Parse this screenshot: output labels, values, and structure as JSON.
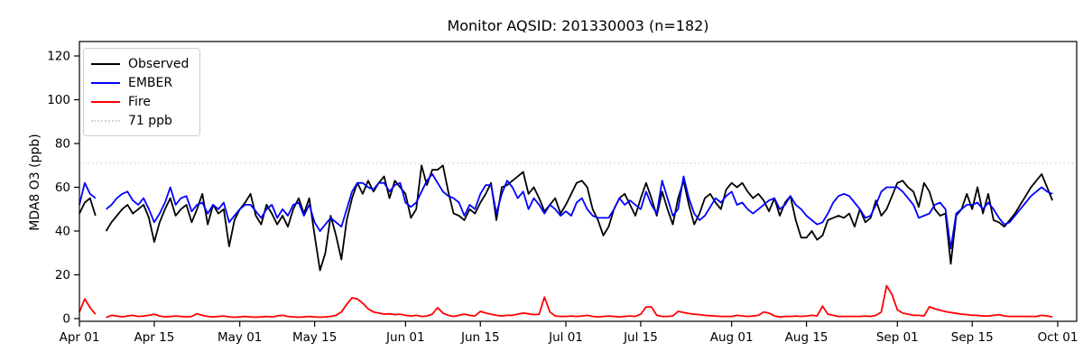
{
  "chart_data": {
    "type": "line",
    "title": "Monitor AQSID: 201330003 (n=182)",
    "ylabel": "MDA8 O3 (ppb)",
    "xlabel": "",
    "ylim": [
      -1.5,
      127
    ],
    "yticks": [
      0,
      20,
      40,
      60,
      80,
      100,
      120
    ],
    "xtick_labels": [
      "Apr 01",
      "Apr 15",
      "May 01",
      "May 15",
      "Jun 01",
      "Jun 15",
      "Jul 01",
      "Jul 15",
      "Aug 01",
      "Aug 15",
      "Sep 01",
      "Sep 15",
      "Oct 01"
    ],
    "xtick_days": [
      0,
      14,
      30,
      44,
      61,
      75,
      91,
      105,
      122,
      136,
      153,
      167,
      183
    ],
    "x_unit": "days since Apr 01",
    "n_points": 182,
    "grid": false,
    "legend_position": "upper left",
    "threshold": {
      "label": "71 ppb",
      "value": 71,
      "color": "#d3d3d3",
      "style": "dotted"
    },
    "series": [
      {
        "name": "Observed",
        "color": "#000000",
        "values": [
          48,
          53,
          55,
          47,
          null,
          40,
          44,
          47,
          50,
          52,
          48,
          50,
          52,
          46,
          35,
          44,
          50,
          55,
          47,
          50,
          52,
          44,
          50,
          57,
          43,
          52,
          48,
          50,
          33,
          45,
          50,
          53,
          57,
          47,
          43,
          52,
          48,
          43,
          47,
          42,
          50,
          55,
          48,
          55,
          38,
          22,
          30,
          47,
          38,
          27,
          45,
          55,
          62,
          57,
          63,
          58,
          62,
          65,
          55,
          63,
          60,
          57,
          46,
          50,
          70,
          61,
          68,
          68,
          70,
          58,
          48,
          47,
          45,
          50,
          48,
          53,
          57,
          62,
          45,
          60,
          61,
          63,
          65,
          67,
          57,
          60,
          55,
          49,
          52,
          55,
          48,
          52,
          57,
          62,
          63,
          60,
          50,
          45,
          38,
          42,
          50,
          55,
          57,
          52,
          47,
          55,
          62,
          55,
          47,
          58,
          50,
          43,
          55,
          63,
          52,
          43,
          48,
          55,
          57,
          53,
          50,
          59,
          62,
          60,
          62,
          58,
          55,
          57,
          54,
          49,
          55,
          47,
          53,
          56,
          45,
          37,
          37,
          40,
          36,
          38,
          45,
          46,
          47,
          46,
          48,
          42,
          50,
          44,
          46,
          54,
          47,
          50,
          56,
          62,
          63,
          60,
          58,
          51,
          62,
          58,
          50,
          47,
          48,
          25,
          47,
          50,
          57,
          50,
          60,
          48,
          57,
          45,
          44,
          42,
          45,
          48,
          52,
          56,
          60,
          63,
          66,
          60,
          54
        ]
      },
      {
        "name": "EMBER",
        "color": "#0000ff",
        "values": [
          52,
          62,
          57,
          55,
          null,
          50,
          52,
          55,
          57,
          58,
          54,
          52,
          55,
          50,
          44,
          48,
          53,
          60,
          52,
          55,
          56,
          49,
          52,
          53,
          48,
          52,
          50,
          53,
          44,
          47,
          50,
          52,
          52,
          49,
          46,
          50,
          52,
          46,
          50,
          47,
          52,
          53,
          47,
          52,
          44,
          40,
          43,
          46,
          44,
          42,
          50,
          58,
          62,
          62,
          60,
          59,
          62,
          62,
          58,
          61,
          62,
          53,
          51,
          53,
          58,
          63,
          66,
          62,
          58,
          56,
          55,
          53,
          47,
          52,
          50,
          57,
          61,
          61,
          48,
          57,
          63,
          60,
          55,
          58,
          50,
          55,
          52,
          48,
          52,
          50,
          47,
          49,
          47,
          53,
          55,
          50,
          47,
          46,
          46,
          46,
          50,
          55,
          52,
          54,
          52,
          50,
          58,
          52,
          48,
          63,
          55,
          47,
          50,
          65,
          55,
          48,
          45,
          47,
          51,
          55,
          53,
          56,
          58,
          52,
          53,
          50,
          48,
          50,
          52,
          54,
          55,
          50,
          52,
          56,
          52,
          50,
          47,
          45,
          43,
          44,
          48,
          53,
          56,
          57,
          56,
          53,
          50,
          46,
          47,
          52,
          58,
          60,
          60,
          60,
          58,
          55,
          52,
          46,
          47,
          48,
          52,
          53,
          50,
          32,
          48,
          50,
          52,
          52,
          53,
          50,
          53,
          50,
          46,
          43,
          44,
          47,
          50,
          53,
          56,
          58,
          60,
          58,
          57
        ]
      },
      {
        "name": "Fire",
        "color": "#ff0000",
        "values": [
          3,
          9,
          5,
          2,
          null,
          0.5,
          1.5,
          1.2,
          0.8,
          1.2,
          1.5,
          1,
          1.2,
          1.5,
          2,
          1.2,
          0.8,
          1,
          1.2,
          1,
          0.8,
          1,
          2.2,
          1.5,
          1,
          0.8,
          1,
          1.2,
          0.8,
          0.6,
          0.8,
          1,
          0.8,
          0.6,
          0.8,
          1,
          0.8,
          1.2,
          1.5,
          1,
          0.8,
          0.6,
          0.8,
          1,
          0.8,
          0.6,
          0.8,
          1,
          1.5,
          3,
          6.5,
          9.5,
          9,
          7,
          4.5,
          3,
          2.5,
          2,
          2.2,
          1.8,
          2,
          1.5,
          1.2,
          1.5,
          1,
          1.2,
          2,
          5,
          2.5,
          1.5,
          1,
          1.5,
          2,
          1.5,
          1.2,
          3.3,
          2.5,
          2,
          1.5,
          1.2,
          1.5,
          1.5,
          2,
          2.5,
          2.2,
          1.8,
          2,
          9.8,
          3,
          1.2,
          1,
          1,
          1.2,
          1,
          1.2,
          1.5,
          1,
          0.8,
          1,
          1.2,
          1,
          0.8,
          1,
          1.2,
          1,
          2,
          5.3,
          5.3,
          1.5,
          1,
          1,
          1.2,
          3.3,
          2.8,
          2.3,
          2,
          1.8,
          1.5,
          1.3,
          1.2,
          1,
          1,
          1,
          1.5,
          1.2,
          1,
          1.2,
          1.5,
          3,
          2.5,
          1.2,
          0.8,
          1,
          1,
          1.2,
          1,
          1.2,
          1.5,
          1.2,
          5.7,
          2,
          1.5,
          1,
          1,
          1,
          1,
          1,
          1.2,
          1,
          1.5,
          3,
          15,
          11,
          4,
          2.5,
          2,
          1.5,
          1.5,
          1.2,
          5.4,
          4.5,
          3.8,
          3.2,
          2.8,
          2.4,
          2,
          1.8,
          1.5,
          1.5,
          1.2,
          1.2,
          1.5,
          1.8,
          1.2,
          1,
          1,
          1,
          1,
          1,
          1,
          1.5,
          1.2,
          0.8
        ]
      }
    ]
  }
}
